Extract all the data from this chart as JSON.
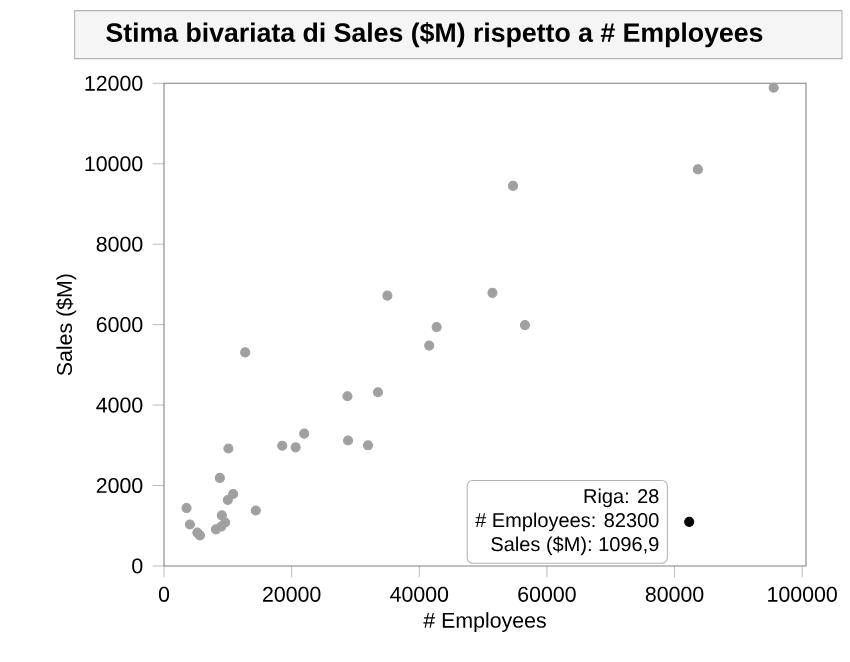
{
  "chart_data": {
    "type": "scatter",
    "title": "Stima bivariata di Sales ($M) rispetto a # Employees",
    "xlabel": "# Employees",
    "ylabel": "Sales ($M)",
    "series": [
      {
        "color": "#a0a0a0",
        "x": [
          3530,
          4060,
          5220,
          5630,
          8130,
          8970,
          9590,
          9060,
          10000,
          10840,
          8750,
          10090,
          12720,
          14380,
          18530,
          20630,
          21970,
          28750,
          28840,
          31970,
          33530,
          35000,
          41560,
          42720,
          51470,
          54690,
          56560,
          83660,
          95530
        ],
        "values": [
          1440,
          1030,
          830,
          760,
          910,
          980,
          1080,
          1260,
          1640,
          1790,
          2190,
          2920,
          5310,
          1380,
          2990,
          2950,
          3290,
          4220,
          3120,
          3000,
          4320,
          6720,
          5480,
          5940,
          6790,
          9450,
          5990,
          9860,
          11890
        ]
      },
      {
        "color": "#000000",
        "x": [
          82300
        ],
        "values": [
          1096.9
        ]
      }
    ],
    "annotations": [
      "Riga: 28",
      "# Employees: 82300",
      "Sales ($M): 1096,9"
    ],
    "xlim": [
      0,
      100600
    ],
    "ylim": [
      0,
      12000
    ],
    "xticks": [
      0,
      20000,
      40000,
      60000,
      80000,
      100000
    ],
    "yticks": [
      0,
      2000,
      4000,
      6000,
      8000,
      10000,
      12000
    ],
    "grid": false
  }
}
